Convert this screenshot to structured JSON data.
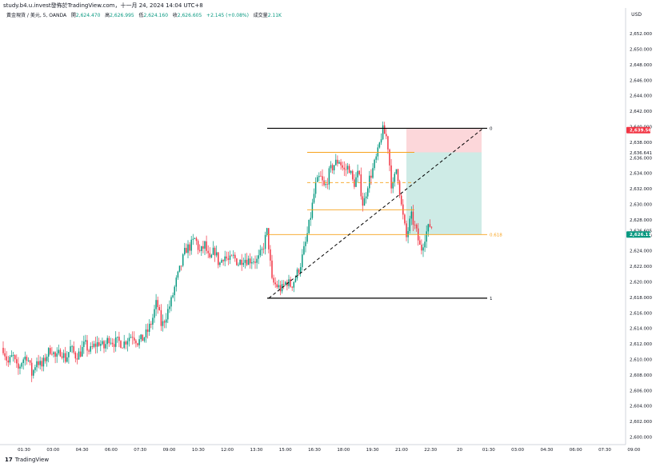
{
  "header": {
    "source_line": "study.b4.u.invest發佈於TradingView.com，十一月 24, 2024 14:04 UTC+8",
    "symbol": "黃金現貨 / 美元, 5, OANDA",
    "open_label": "開",
    "open": "2,624.470",
    "high_label": "高",
    "high": "2,626.995",
    "low_label": "低",
    "low": "2,624.160",
    "close_label": "收",
    "close": "2,626.605",
    "change": "+2.145 (+0.08%)",
    "volume_label": "成交量",
    "volume": "2.11K",
    "currency": "USD"
  },
  "footer": {
    "logo_text": "TradingView"
  },
  "colors": {
    "up": "#089981",
    "down": "#f23645",
    "fib": "#f7a21b",
    "stop": "#f23645",
    "profit": "#089981",
    "bg": "#ffffff"
  },
  "chart_data": {
    "type": "candlestick",
    "ylim": [
      2600,
      2653
    ],
    "y_ticks": [
      "2,600.000",
      "2,602.000",
      "2,604.000",
      "2,606.000",
      "2,608.000",
      "2,610.000",
      "2,612.000",
      "2,614.000",
      "2,616.000",
      "2,618.000",
      "2,620.000",
      "2,622.000",
      "2,624.000",
      "2,626.000",
      "2,628.000",
      "2,630.000",
      "2,632.000",
      "2,634.000",
      "2,636.000",
      "2,638.000",
      "2,640.000",
      "2,642.000",
      "2,644.000",
      "2,646.000",
      "2,648.000",
      "2,650.000",
      "2,652.000"
    ],
    "x_ticks": [
      "01:30",
      "03:00",
      "04:30",
      "06:00",
      "07:30",
      "09:00",
      "10:30",
      "12:00",
      "13:30",
      "15:00",
      "16:30",
      "18:00",
      "19:30",
      "21:00",
      "22:30",
      "20",
      "01:30",
      "03:00",
      "04:30",
      "06:00",
      "07:30",
      "09:00"
    ],
    "price_labels": [
      {
        "text": "2,639.563",
        "value": 2639.563,
        "style": "red"
      },
      {
        "text": "2,636.641",
        "value": 2636.641,
        "style": "plain"
      },
      {
        "text": "2,626.605",
        "value": 2626.605,
        "style": "plain"
      },
      {
        "text": "2,626.114",
        "value": 2626.114,
        "style": "green"
      }
    ],
    "fib_levels": [
      {
        "label": "0",
        "value": 2639.8
      },
      {
        "label": "",
        "value": 2636.7
      },
      {
        "label": "",
        "value": 2632.8
      },
      {
        "label": "",
        "value": 2629.3
      },
      {
        "label": "0.618",
        "value": 2626.1
      },
      {
        "label": "1",
        "value": 2617.9
      }
    ],
    "position": {
      "entry": 2636.7,
      "stop": 2639.8,
      "target": 2626.1
    },
    "path": [
      [
        0,
        2611.5
      ],
      [
        6,
        2609.5
      ],
      [
        12,
        2610.5
      ],
      [
        18,
        2608.5
      ],
      [
        24,
        2610.0
      ],
      [
        30,
        2610.5
      ],
      [
        36,
        2608.0
      ],
      [
        42,
        2610.0
      ],
      [
        48,
        2609.0
      ],
      [
        54,
        2610.5
      ],
      [
        60,
        2611.5
      ],
      [
        66,
        2610.0
      ],
      [
        72,
        2611.2
      ],
      [
        78,
        2610.0
      ],
      [
        84,
        2611.5
      ],
      [
        90,
        2610.5
      ],
      [
        96,
        2610.8
      ],
      [
        102,
        2612.0
      ],
      [
        108,
        2611.0
      ],
      [
        114,
        2611.8
      ],
      [
        120,
        2612.2
      ],
      [
        126,
        2611.5
      ],
      [
        132,
        2612.8
      ],
      [
        138,
        2612.2
      ],
      [
        144,
        2612.3
      ],
      [
        150,
        2612.0
      ],
      [
        156,
        2612.8
      ],
      [
        162,
        2613.2
      ],
      [
        168,
        2612.3
      ],
      [
        174,
        2612.6
      ],
      [
        180,
        2613.5
      ],
      [
        186,
        2615.0
      ],
      [
        192,
        2617.5
      ],
      [
        198,
        2614.2
      ],
      [
        204,
        2615.8
      ],
      [
        210,
        2617.5
      ],
      [
        216,
        2620.0
      ],
      [
        222,
        2622.0
      ],
      [
        228,
        2624.2
      ],
      [
        234,
        2624.6
      ],
      [
        240,
        2625.6
      ],
      [
        246,
        2623.7
      ],
      [
        252,
        2624.8
      ],
      [
        258,
        2622.5
      ],
      [
        264,
        2624.2
      ],
      [
        270,
        2622.2
      ],
      [
        276,
        2623.5
      ],
      [
        282,
        2622.6
      ],
      [
        288,
        2623.2
      ],
      [
        294,
        2622.4
      ],
      [
        300,
        2623.1
      ],
      [
        306,
        2622.8
      ],
      [
        312,
        2622.9
      ],
      [
        318,
        2622.7
      ],
      [
        324,
        2624.1
      ],
      [
        330,
        2626.6
      ],
      [
        336,
        2620.0
      ],
      [
        342,
        2619.5
      ],
      [
        348,
        2619.0
      ],
      [
        354,
        2620.1
      ],
      [
        360,
        2619.5
      ],
      [
        366,
        2620.7
      ],
      [
        372,
        2622.4
      ],
      [
        378,
        2625.0
      ],
      [
        384,
        2628.3
      ],
      [
        390,
        2632.3
      ],
      [
        396,
        2633.6
      ],
      [
        402,
        2632.0
      ],
      [
        408,
        2634.2
      ],
      [
        414,
        2635.2
      ],
      [
        420,
        2635.7
      ],
      [
        426,
        2634.3
      ],
      [
        432,
        2634.9
      ],
      [
        438,
        2632.5
      ],
      [
        444,
        2634.1
      ],
      [
        450,
        2629.7
      ],
      [
        456,
        2632.8
      ],
      [
        462,
        2634.5
      ],
      [
        468,
        2636.5
      ],
      [
        474,
        2639.6
      ],
      [
        480,
        2638.5
      ],
      [
        486,
        2631.7
      ],
      [
        492,
        2634.9
      ],
      [
        498,
        2629.5
      ],
      [
        504,
        2625.7
      ],
      [
        510,
        2628.5
      ],
      [
        516,
        2626.6
      ],
      [
        522,
        2624.0
      ],
      [
        528,
        2626.2
      ],
      [
        534,
        2627.4
      ],
      [
        540,
        2626.6
      ]
    ]
  }
}
